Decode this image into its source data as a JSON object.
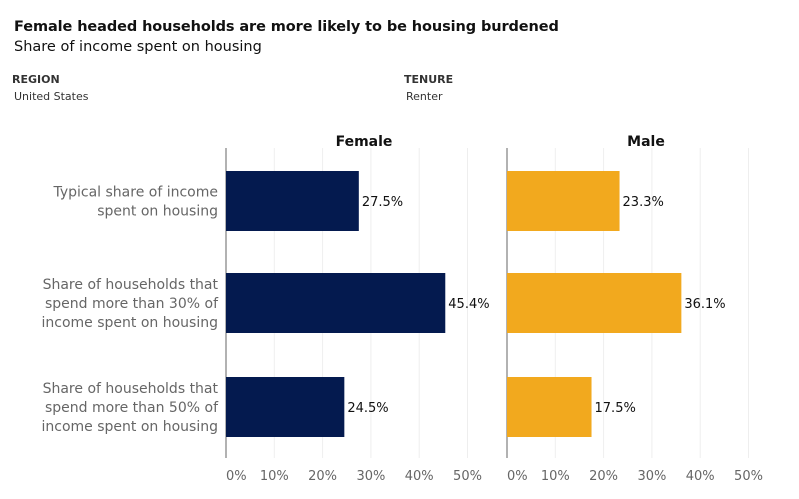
{
  "header": {
    "title": "Female headed households are more likely to be housing burdened",
    "subtitle": "Share of income spent on housing"
  },
  "filters": {
    "region": {
      "label": "REGION",
      "value": "United States"
    },
    "tenure": {
      "label": "TENURE",
      "value": "Renter"
    }
  },
  "chart_data": {
    "type": "bar",
    "orientation": "horizontal",
    "categories": [
      [
        "Typical share of income",
        "spent on housing"
      ],
      [
        "Share of households that",
        "spend more than 30% of",
        "income spent on housing"
      ],
      [
        "Share of households that",
        "spend more than 50% of",
        "income spent on housing"
      ]
    ],
    "series": [
      {
        "name": "Female",
        "values": [
          27.5,
          45.4,
          24.5
        ],
        "labels": [
          "27.5%",
          "45.4%",
          "24.5%"
        ],
        "color": "#041a4f"
      },
      {
        "name": "Male",
        "values": [
          23.3,
          36.1,
          17.5
        ],
        "labels": [
          "23.3%",
          "36.1%",
          "17.5%"
        ],
        "color": "#f2a91e"
      }
    ],
    "xlim": [
      0,
      50
    ],
    "xticks": [
      "0%",
      "10%",
      "20%",
      "30%",
      "40%",
      "50%"
    ],
    "grid": true
  }
}
